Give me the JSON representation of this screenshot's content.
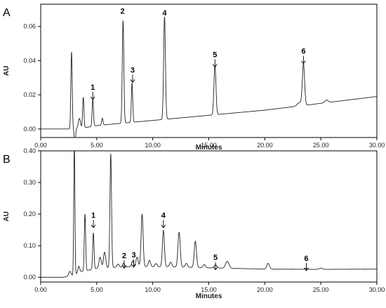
{
  "chart_data": [
    {
      "type": "line",
      "panel_label": "A",
      "xlabel": "Minutes",
      "ylabel": "AU",
      "xlim": [
        0,
        30
      ],
      "ylim": [
        -0.005,
        0.073
      ],
      "x_ticks": [
        "0.00",
        "5.00",
        "10.00",
        "15.00",
        "20.00",
        "25.00",
        "30.00"
      ],
      "y_ticks": [
        "0.00",
        "0.02",
        "0.04",
        "0.06"
      ],
      "x_tick_values": [
        0,
        5,
        10,
        15,
        20,
        25,
        30
      ],
      "y_tick_values": [
        0,
        0.02,
        0.04,
        0.06
      ],
      "grid": false,
      "baseline": [
        [
          0,
          0.0
        ],
        [
          2.0,
          0.0
        ],
        [
          3.3,
          0.0
        ],
        [
          5.0,
          0.002
        ],
        [
          10.0,
          0.005
        ],
        [
          15.0,
          0.008
        ],
        [
          20.0,
          0.011
        ],
        [
          25.0,
          0.015
        ],
        [
          30.0,
          0.019
        ]
      ],
      "peaks": [
        {
          "t": 2.75,
          "h": 0.045,
          "w": 0.06
        },
        {
          "t": 3.05,
          "h": -0.012,
          "w": 0.05
        },
        {
          "t": 3.45,
          "h": 0.006,
          "w": 0.1
        },
        {
          "t": 3.8,
          "h": 0.018,
          "w": 0.06
        },
        {
          "t": 4.65,
          "h": 0.016,
          "w": 0.06
        },
        {
          "t": 5.5,
          "h": 0.004,
          "w": 0.06
        },
        {
          "t": 7.35,
          "h": 0.06,
          "w": 0.07
        },
        {
          "t": 8.15,
          "h": 0.023,
          "w": 0.06
        },
        {
          "t": 11.05,
          "h": 0.06,
          "w": 0.08
        },
        {
          "t": 15.55,
          "h": 0.029,
          "w": 0.09
        },
        {
          "t": 23.1,
          "h": 0.002,
          "w": 0.2
        },
        {
          "t": 23.45,
          "h": 0.024,
          "w": 0.1
        },
        {
          "t": 25.5,
          "h": 0.0015,
          "w": 0.15
        }
      ],
      "annotations": [
        {
          "label": "1",
          "x": 4.65,
          "y": 0.023,
          "arrow": true
        },
        {
          "label": "2",
          "x": 7.3,
          "y": 0.0675,
          "arrow": false
        },
        {
          "label": "3",
          "x": 8.2,
          "y": 0.033,
          "arrow": true
        },
        {
          "label": "4",
          "x": 11.05,
          "y": 0.0665,
          "arrow": false
        },
        {
          "label": "5",
          "x": 15.55,
          "y": 0.042,
          "arrow": true
        },
        {
          "label": "6",
          "x": 23.45,
          "y": 0.044,
          "arrow": true
        }
      ]
    },
    {
      "type": "line",
      "panel_label": "B",
      "xlabel": "Minutes",
      "ylabel": "AU",
      "xlim": [
        0,
        30
      ],
      "ylim": [
        -0.015,
        0.4
      ],
      "x_ticks": [
        "0.00",
        "5.00",
        "10.00",
        "15.00",
        "20.00",
        "25.00",
        "30.00"
      ],
      "y_ticks": [
        "0.00",
        "0.10",
        "0.20",
        "0.30",
        "0.40"
      ],
      "x_tick_values": [
        0,
        5,
        10,
        15,
        20,
        25,
        30
      ],
      "y_tick_values": [
        0,
        0.1,
        0.2,
        0.3,
        0.4
      ],
      "grid": false,
      "baseline": [
        [
          0,
          0.0
        ],
        [
          2.0,
          0.0
        ],
        [
          2.8,
          0.005
        ],
        [
          3.6,
          0.018
        ],
        [
          5.0,
          0.028
        ],
        [
          8.0,
          0.034
        ],
        [
          12.0,
          0.033
        ],
        [
          16.0,
          0.029
        ],
        [
          20.0,
          0.026
        ],
        [
          25.0,
          0.025
        ],
        [
          30.0,
          0.026
        ]
      ],
      "peaks": [
        {
          "t": 2.6,
          "h": 0.015,
          "w": 0.1
        },
        {
          "t": 3.0,
          "h": 0.42,
          "w": 0.05
        },
        {
          "t": 3.4,
          "h": 0.02,
          "w": 0.08
        },
        {
          "t": 3.95,
          "h": 0.18,
          "w": 0.06
        },
        {
          "t": 4.7,
          "h": 0.115,
          "w": 0.06
        },
        {
          "t": 5.3,
          "h": 0.035,
          "w": 0.1
        },
        {
          "t": 5.7,
          "h": 0.05,
          "w": 0.1
        },
        {
          "t": 6.25,
          "h": 0.36,
          "w": 0.07
        },
        {
          "t": 6.9,
          "h": 0.01,
          "w": 0.1
        },
        {
          "t": 7.4,
          "h": 0.012,
          "w": 0.08
        },
        {
          "t": 8.2,
          "h": 0.018,
          "w": 0.08
        },
        {
          "t": 8.6,
          "h": 0.03,
          "w": 0.1
        },
        {
          "t": 9.05,
          "h": 0.165,
          "w": 0.09
        },
        {
          "t": 9.7,
          "h": 0.02,
          "w": 0.1
        },
        {
          "t": 10.3,
          "h": 0.01,
          "w": 0.1
        },
        {
          "t": 10.95,
          "h": 0.115,
          "w": 0.09
        },
        {
          "t": 11.6,
          "h": 0.015,
          "w": 0.1
        },
        {
          "t": 12.35,
          "h": 0.11,
          "w": 0.1
        },
        {
          "t": 13.0,
          "h": 0.012,
          "w": 0.1
        },
        {
          "t": 13.8,
          "h": 0.083,
          "w": 0.1
        },
        {
          "t": 14.6,
          "h": 0.01,
          "w": 0.1
        },
        {
          "t": 15.6,
          "h": 0.01,
          "w": 0.12
        },
        {
          "t": 16.65,
          "h": 0.022,
          "w": 0.15
        },
        {
          "t": 20.3,
          "h": 0.018,
          "w": 0.12
        },
        {
          "t": 23.7,
          "h": 0.004,
          "w": 0.1
        },
        {
          "t": 25.0,
          "h": 0.004,
          "w": 0.15
        }
      ],
      "annotations": [
        {
          "label": "1",
          "x": 4.7,
          "y": 0.188,
          "arrow": true
        },
        {
          "label": "2",
          "x": 7.45,
          "y": 0.06,
          "arrow": true
        },
        {
          "label": "3",
          "x": 8.3,
          "y": 0.063,
          "arrow": true
        },
        {
          "label": "4",
          "x": 10.95,
          "y": 0.188,
          "arrow": true
        },
        {
          "label": "5",
          "x": 15.6,
          "y": 0.055,
          "arrow": true
        },
        {
          "label": "6",
          "x": 23.7,
          "y": 0.052,
          "arrow": true
        }
      ]
    }
  ],
  "colors": {
    "trace": "#222222",
    "axis": "#000000",
    "text": "#222222"
  }
}
